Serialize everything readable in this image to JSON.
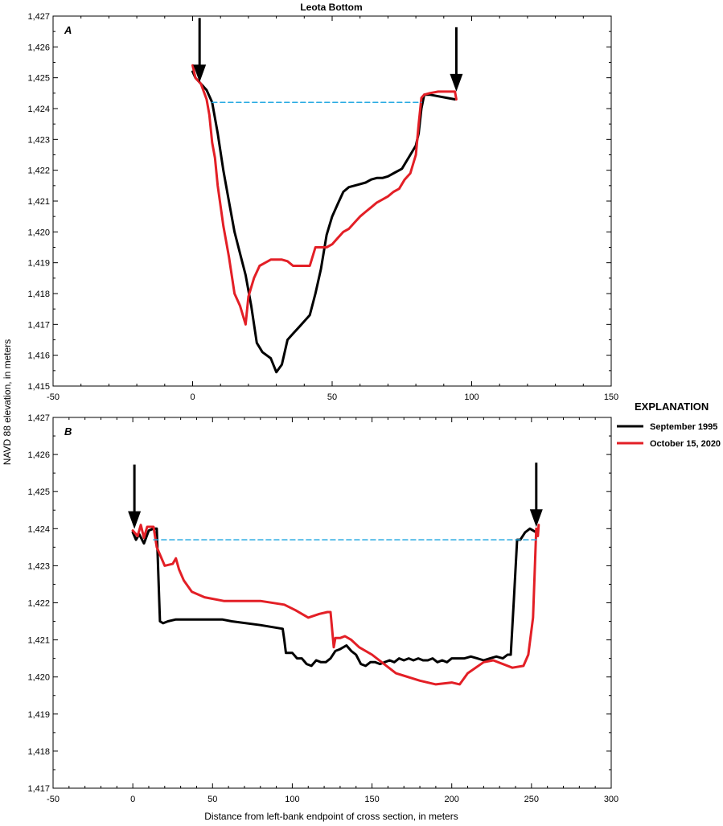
{
  "figure": {
    "ylabel": "NAVD 88 elevation, in meters",
    "xlabel": "Distance from left-bank endpoint of cross section, in meters"
  },
  "legend": {
    "title": "EXPLANATION",
    "items": [
      {
        "label": "September 1995",
        "color": "#000000"
      },
      {
        "label": "October 15, 2020",
        "color": "#e31f26"
      }
    ]
  },
  "colors": {
    "series_1995": "#000000",
    "series_2020": "#e31f26",
    "water_surface": "#29abe2"
  },
  "chart_data": [
    {
      "type": "line",
      "panel": "A",
      "title": "Leota Bottom",
      "xlim": [
        -50,
        150
      ],
      "ylim": [
        1415,
        1427
      ],
      "xticks": [
        -50,
        0,
        50,
        100,
        150
      ],
      "xtick_labels": [
        "-50",
        "0",
        "50",
        "100",
        "150"
      ],
      "yticks": [
        1415,
        1416,
        1417,
        1418,
        1419,
        1420,
        1421,
        1422,
        1423,
        1424,
        1425,
        1426,
        1427
      ],
      "ytick_labels": [
        "1,415",
        "1,416",
        "1,417",
        "1,418",
        "1,419",
        "1,420",
        "1,421",
        "1,422",
        "1,423",
        "1,424",
        "1,425",
        "1,426",
        "1,427"
      ],
      "series": [
        {
          "name": "September 1995",
          "color": "#000000",
          "x": [
            0,
            1,
            3,
            5,
            7,
            9,
            11,
            13,
            15,
            17,
            19,
            21,
            23,
            25,
            28,
            30,
            32,
            34,
            36,
            38,
            40,
            42,
            44,
            46,
            48,
            50,
            52,
            54,
            56,
            58,
            60,
            62,
            64,
            66,
            68,
            70,
            72,
            75,
            78,
            80,
            81,
            82,
            83,
            85,
            88,
            91,
            94
          ],
          "y": [
            1425.2,
            1425.0,
            1424.8,
            1424.6,
            1424.2,
            1423.2,
            1422.0,
            1421.0,
            1420.0,
            1419.3,
            1418.6,
            1417.6,
            1416.4,
            1416.1,
            1415.9,
            1415.45,
            1415.7,
            1416.5,
            1416.7,
            1416.9,
            1417.1,
            1417.3,
            1418.0,
            1418.8,
            1419.9,
            1420.5,
            1420.9,
            1421.3,
            1421.45,
            1421.5,
            1421.55,
            1421.6,
            1421.7,
            1421.75,
            1421.75,
            1421.8,
            1421.9,
            1422.05,
            1422.5,
            1422.8,
            1423.2,
            1424.0,
            1424.45,
            1424.45,
            1424.4,
            1424.35,
            1424.3
          ]
        },
        {
          "name": "October 15, 2020",
          "color": "#e31f26",
          "x": [
            0,
            1,
            3,
            5,
            6,
            7,
            8,
            9,
            11,
            13,
            15,
            17,
            19,
            20,
            22,
            24,
            26,
            28,
            30,
            32,
            34,
            36,
            38,
            40,
            42,
            44,
            46,
            48,
            50,
            52,
            54,
            56,
            58,
            60,
            62,
            64,
            66,
            68,
            70,
            72,
            74,
            76,
            78,
            80,
            81,
            82,
            83,
            85,
            88,
            91,
            94,
            94.5
          ],
          "y": [
            1425.4,
            1425.0,
            1424.8,
            1424.3,
            1423.8,
            1422.9,
            1422.4,
            1421.5,
            1420.2,
            1419.2,
            1418.0,
            1417.6,
            1417.0,
            1417.9,
            1418.5,
            1418.9,
            1419.0,
            1419.1,
            1419.1,
            1419.1,
            1419.05,
            1418.9,
            1418.9,
            1418.9,
            1418.9,
            1419.5,
            1419.5,
            1419.5,
            1419.6,
            1419.8,
            1420.0,
            1420.1,
            1420.3,
            1420.5,
            1420.65,
            1420.8,
            1420.95,
            1421.05,
            1421.15,
            1421.3,
            1421.4,
            1421.7,
            1421.9,
            1422.5,
            1423.5,
            1424.35,
            1424.45,
            1424.5,
            1424.55,
            1424.55,
            1424.55,
            1424.3
          ]
        },
        {
          "role": "water surface",
          "color": "#29abe2",
          "dashed": true,
          "x": [
            7,
            82
          ],
          "y": [
            1424.2,
            1424.2
          ]
        }
      ],
      "arrows": [
        {
          "x": 2.5,
          "y": 1424.8
        },
        {
          "x": 94.5,
          "y": 1424.5
        }
      ]
    },
    {
      "type": "line",
      "panel": "B",
      "title": "",
      "xlim": [
        -50,
        300
      ],
      "ylim": [
        1417,
        1427
      ],
      "xticks": [
        -50,
        0,
        50,
        100,
        150,
        200,
        250,
        300
      ],
      "xtick_labels": [
        "-50",
        "0",
        "50",
        "100",
        "150",
        "200",
        "250",
        "300"
      ],
      "yticks": [
        1417,
        1418,
        1419,
        1420,
        1421,
        1422,
        1423,
        1424,
        1425,
        1426,
        1427
      ],
      "ytick_labels": [
        "1,417",
        "1,418",
        "1,419",
        "1,420",
        "1,421",
        "1,422",
        "1,423",
        "1,424",
        "1,425",
        "1,426",
        "1,427"
      ],
      "series": [
        {
          "name": "September 1995",
          "color": "#000000",
          "x": [
            0,
            2,
            4,
            7,
            10,
            13,
            15,
            17,
            19,
            22,
            27,
            40,
            56,
            62,
            80,
            94,
            95,
            96,
            100,
            103,
            106,
            109,
            112,
            115,
            118,
            121,
            124,
            127,
            130,
            134,
            137,
            140,
            143,
            146,
            149,
            152,
            155,
            158,
            161,
            164,
            167,
            170,
            173,
            176,
            179,
            182,
            185,
            188,
            191,
            194,
            197,
            200,
            204,
            208,
            212,
            216,
            220,
            224,
            228,
            232,
            235,
            237,
            239,
            241,
            243,
            246,
            249,
            251,
            253
          ],
          "y": [
            1423.9,
            1423.7,
            1423.85,
            1423.6,
            1423.95,
            1424.0,
            1424.0,
            1421.5,
            1421.45,
            1421.5,
            1421.55,
            1421.55,
            1421.55,
            1421.5,
            1421.4,
            1421.3,
            1421.0,
            1420.65,
            1420.65,
            1420.5,
            1420.5,
            1420.35,
            1420.3,
            1420.45,
            1420.4,
            1420.4,
            1420.5,
            1420.7,
            1420.75,
            1420.85,
            1420.7,
            1420.6,
            1420.35,
            1420.3,
            1420.4,
            1420.4,
            1420.35,
            1420.4,
            1420.45,
            1420.4,
            1420.5,
            1420.45,
            1420.5,
            1420.45,
            1420.5,
            1420.45,
            1420.45,
            1420.5,
            1420.4,
            1420.45,
            1420.4,
            1420.5,
            1420.5,
            1420.5,
            1420.55,
            1420.5,
            1420.45,
            1420.5,
            1420.55,
            1420.5,
            1420.6,
            1420.6,
            1422.1,
            1423.7,
            1423.7,
            1423.9,
            1424.0,
            1423.95,
            1423.9
          ]
        },
        {
          "name": "October 15, 2020",
          "color": "#e31f26",
          "x": [
            0,
            3,
            5,
            7,
            9,
            11,
            13,
            15,
            17,
            20,
            25,
            27,
            29,
            32,
            37,
            45,
            57,
            75,
            80,
            95,
            102,
            110,
            117,
            122,
            124,
            126,
            127,
            130,
            133,
            137,
            142,
            150,
            165,
            180,
            190,
            200,
            205,
            210,
            220,
            226,
            238,
            245,
            248,
            251,
            253,
            254,
            254.5
          ],
          "y": [
            1423.95,
            1423.8,
            1424.1,
            1423.75,
            1424.05,
            1424.05,
            1424.05,
            1423.5,
            1423.3,
            1423.0,
            1423.05,
            1423.2,
            1422.9,
            1422.6,
            1422.3,
            1422.15,
            1422.05,
            1422.05,
            1422.05,
            1421.95,
            1421.8,
            1421.6,
            1421.7,
            1421.75,
            1421.75,
            1420.8,
            1421.05,
            1421.05,
            1421.1,
            1421.0,
            1420.8,
            1420.6,
            1420.1,
            1419.9,
            1419.8,
            1419.85,
            1419.8,
            1420.1,
            1420.4,
            1420.45,
            1420.25,
            1420.3,
            1420.6,
            1421.6,
            1424.0,
            1423.8,
            1424.1
          ]
        },
        {
          "role": "water surface",
          "color": "#29abe2",
          "dashed": true,
          "x": [
            13,
            253
          ],
          "y": [
            1423.7,
            1423.7
          ]
        }
      ],
      "arrows": [
        {
          "x": 1,
          "y": 1423.95
        },
        {
          "x": 253,
          "y": 1424.0
        }
      ]
    }
  ]
}
